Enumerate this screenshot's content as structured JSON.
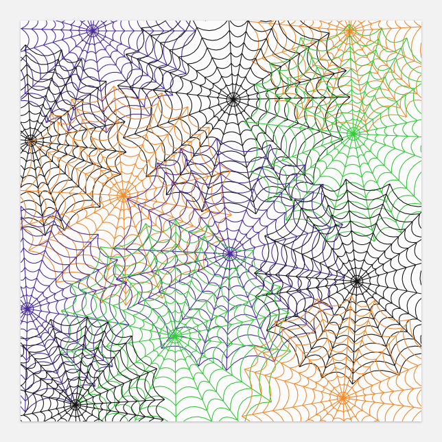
{
  "poster": {
    "background_color": "#fbfbfb",
    "pattern": "spider-webs",
    "palette": {
      "black": "#151515",
      "purple": "#4a2c9c",
      "green": "#34c93a",
      "orange": "#f0892a"
    }
  }
}
